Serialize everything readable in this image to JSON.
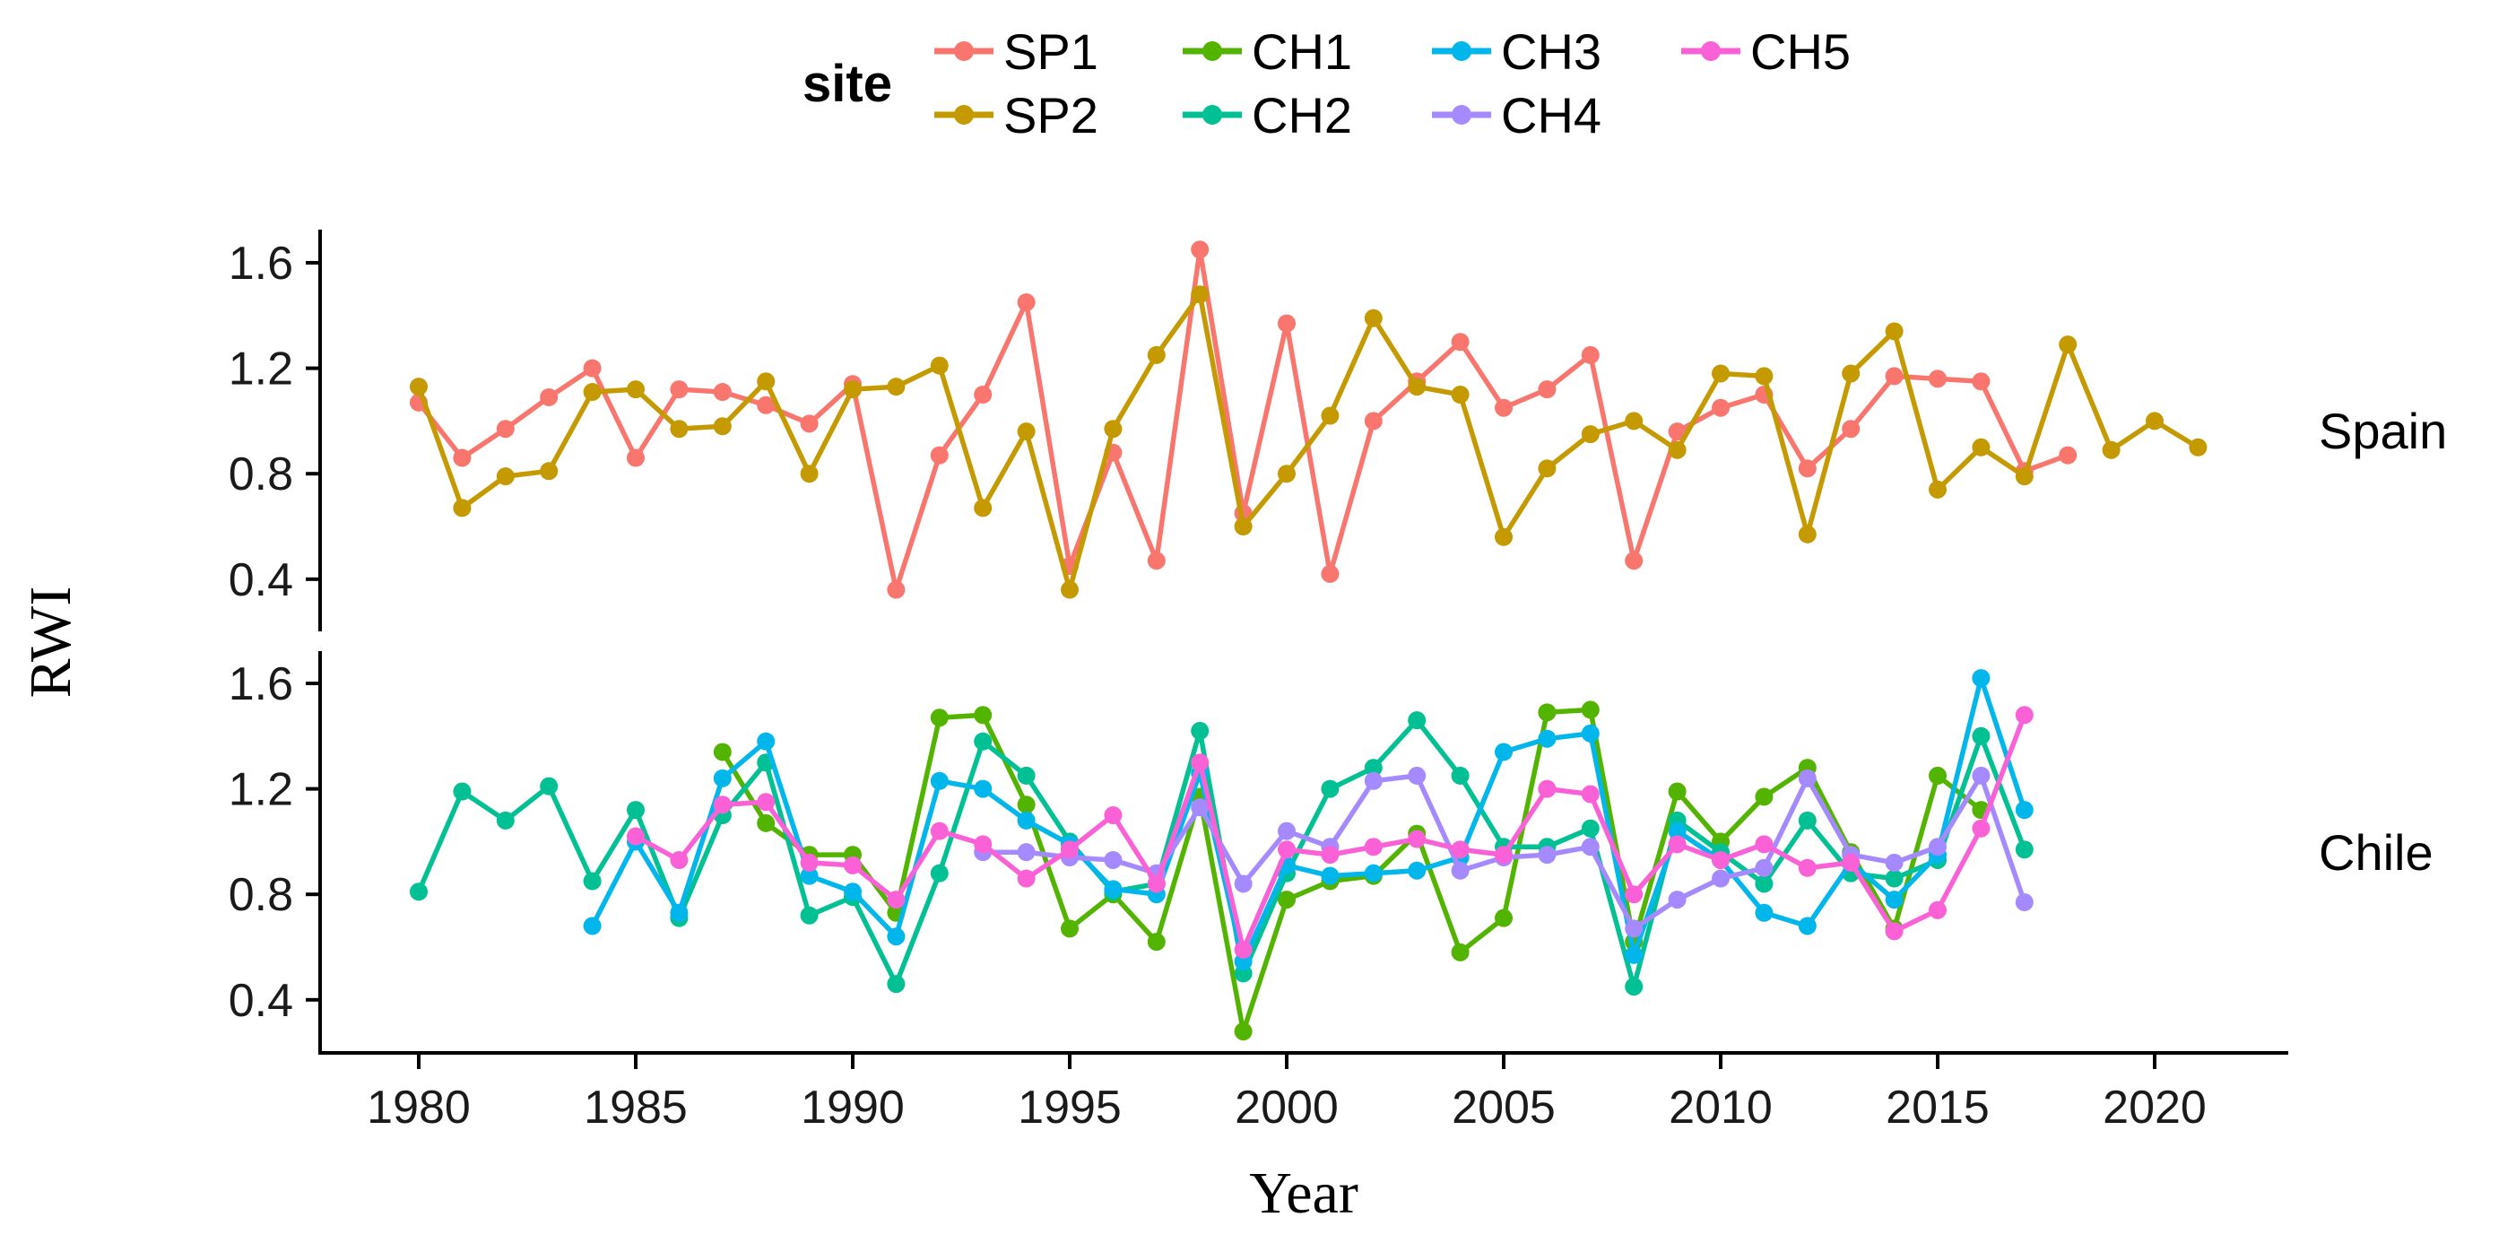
{
  "legend": {
    "title": "site",
    "entries": [
      {
        "label": "SP1",
        "color": "#F8766D",
        "row": 0,
        "col": 0
      },
      {
        "label": "SP2",
        "color": "#C49A00",
        "row": 1,
        "col": 0
      },
      {
        "label": "CH1",
        "color": "#53B400",
        "row": 0,
        "col": 1
      },
      {
        "label": "CH2",
        "color": "#00C094",
        "row": 1,
        "col": 1
      },
      {
        "label": "CH3",
        "color": "#00B6EB",
        "row": 0,
        "col": 2
      },
      {
        "label": "CH4",
        "color": "#A58AFF",
        "row": 1,
        "col": 2
      },
      {
        "label": "CH5",
        "color": "#FB61D7",
        "row": 0,
        "col": 3
      }
    ]
  },
  "axes": {
    "y_title": "RWI",
    "x_title": "Year",
    "x_ticks": [
      1980,
      1985,
      1990,
      1995,
      2000,
      2005,
      2010,
      2015,
      2020
    ],
    "y_ticks": [
      1.6,
      1.2,
      0.8,
      0.4
    ]
  },
  "facets": [
    {
      "label": "Spain",
      "series": [
        "SP1",
        "SP2"
      ]
    },
    {
      "label": "Chile",
      "series": [
        "CH1",
        "CH2",
        "CH3",
        "CH4",
        "CH5"
      ]
    }
  ],
  "chart_data": {
    "type": "line",
    "title": "",
    "xlabel": "Year",
    "ylabel": "RWI",
    "x_range": [
      1978,
      2022.5
    ],
    "y_range": [
      0.2,
      1.72
    ],
    "grid": false,
    "legend_position": "top",
    "marker": "circle",
    "series": [
      {
        "name": "SP1",
        "facet": "Spain",
        "color": "#F8766D",
        "start_year": 1980,
        "values": [
          1.07,
          0.86,
          0.97,
          1.09,
          1.2,
          0.86,
          1.12,
          1.11,
          1.06,
          0.99,
          1.14,
          0.36,
          0.87,
          1.1,
          1.45,
          0.45,
          0.88,
          0.47,
          1.65,
          0.65,
          1.37,
          0.42,
          1.0,
          1.15,
          1.3,
          1.05,
          1.12,
          1.25,
          0.47,
          0.96,
          1.05,
          1.1,
          0.82,
          0.97,
          1.17,
          1.16,
          1.15,
          0.81,
          0.87
        ]
      },
      {
        "name": "SP2",
        "facet": "Spain",
        "color": "#C49A00",
        "start_year": 1980,
        "values": [
          1.13,
          0.67,
          0.79,
          0.81,
          1.11,
          1.12,
          0.97,
          0.98,
          1.15,
          0.8,
          1.12,
          1.13,
          1.21,
          0.67,
          0.96,
          0.36,
          0.97,
          1.25,
          1.48,
          0.6,
          0.8,
          1.02,
          1.39,
          1.13,
          1.1,
          0.56,
          0.82,
          0.95,
          1.0,
          0.89,
          1.18,
          1.17,
          0.57,
          1.18,
          1.34,
          0.74,
          0.9,
          0.79,
          1.29,
          0.89,
          1.0,
          0.9
        ]
      },
      {
        "name": "CH1",
        "facet": "Chile",
        "color": "#53B400",
        "start_year": 1987,
        "values": [
          1.34,
          1.07,
          0.95,
          0.95,
          0.73,
          1.47,
          1.48,
          1.14,
          0.67,
          0.8,
          0.62,
          1.17,
          0.28,
          0.78,
          0.85,
          0.87,
          1.03,
          0.58,
          0.71,
          1.49,
          1.5,
          0.62,
          1.19,
          1.0,
          1.17,
          1.28,
          0.96,
          0.67,
          1.25,
          1.12
        ]
      },
      {
        "name": "CH2",
        "facet": "Chile",
        "color": "#00C094",
        "start_year": 1980,
        "values": [
          0.81,
          1.19,
          1.08,
          1.21,
          0.85,
          1.12,
          0.71,
          1.1,
          1.3,
          0.72,
          0.79,
          0.46,
          0.88,
          1.38,
          1.25,
          1.0,
          0.81,
          0.84,
          1.42,
          0.5,
          0.88,
          1.2,
          1.28,
          1.46,
          1.25,
          0.98,
          0.98,
          1.05,
          0.45,
          1.08,
          0.96,
          0.84,
          1.08,
          0.88,
          0.86,
          0.93,
          1.4,
          0.97
        ]
      },
      {
        "name": "CH3",
        "facet": "Chile",
        "color": "#00B6EB",
        "start_year": 1984,
        "values": [
          0.68,
          1.0,
          0.73,
          1.24,
          1.38,
          0.87,
          0.81,
          0.64,
          1.23,
          1.2,
          1.08,
          0.99,
          0.82,
          0.8,
          1.26,
          0.545,
          0.91,
          0.87,
          0.88,
          0.89,
          0.94,
          1.34,
          1.39,
          1.41,
          0.57,
          1.04,
          0.93,
          0.73,
          0.68,
          0.92,
          0.78,
          0.95,
          1.62,
          1.12
        ]
      },
      {
        "name": "CH4",
        "facet": "Chile",
        "color": "#A58AFF",
        "start_year": 1993,
        "values": [
          0.96,
          0.96,
          0.94,
          0.93,
          0.88,
          1.13,
          0.84,
          1.04,
          0.98,
          1.23,
          1.25,
          0.89,
          0.94,
          0.95,
          0.98,
          0.67,
          0.78,
          0.86,
          0.9,
          1.24,
          0.95,
          0.92,
          0.98,
          1.25,
          0.77
        ]
      },
      {
        "name": "CH5",
        "facet": "Chile",
        "color": "#FB61D7",
        "start_year": 1985,
        "values": [
          1.02,
          0.93,
          1.14,
          1.15,
          0.92,
          0.91,
          0.78,
          1.04,
          0.99,
          0.86,
          0.97,
          1.1,
          0.84,
          1.3,
          0.59,
          0.97,
          0.95,
          0.98,
          1.01,
          0.97,
          0.95,
          1.2,
          1.18,
          0.8,
          0.99,
          0.93,
          0.99,
          0.9,
          0.92,
          0.66,
          0.74,
          1.05,
          1.48
        ]
      }
    ]
  }
}
